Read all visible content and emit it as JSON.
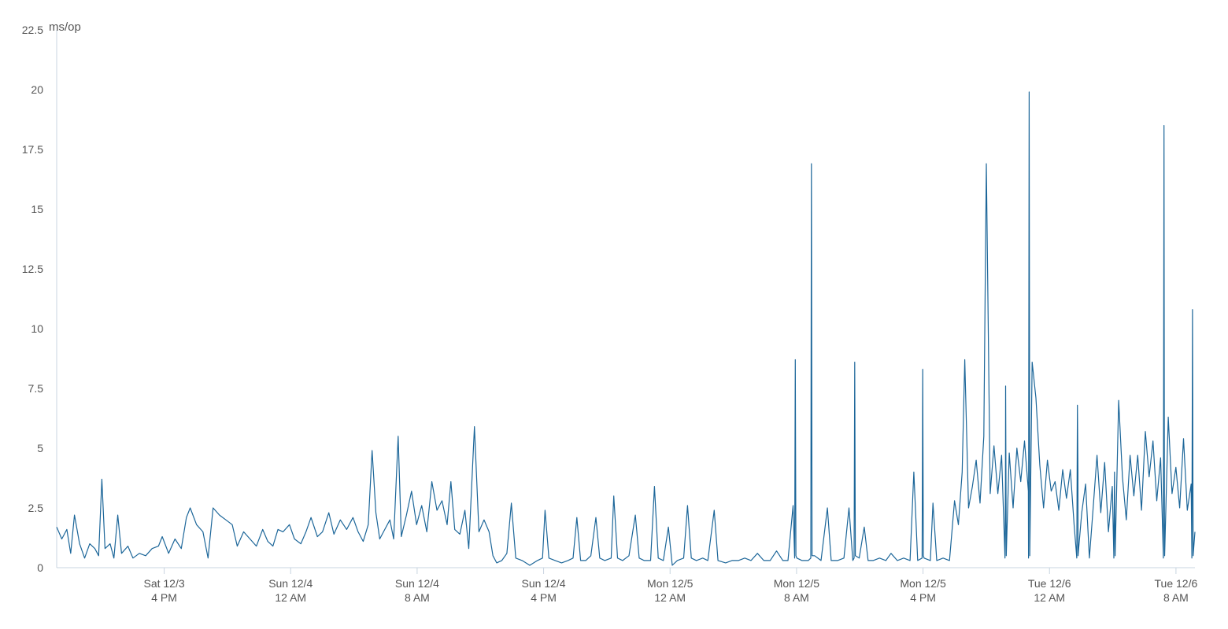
{
  "chart_data": {
    "type": "line",
    "title": "",
    "xlabel": "",
    "ylabel": "ms/op",
    "ylim": [
      0,
      22.5
    ],
    "yticks": [
      0,
      2.5,
      5,
      7.5,
      10,
      12.5,
      15,
      17.5,
      20,
      22.5
    ],
    "ytick_labels": [
      "0",
      "2.5",
      "5",
      "7.5",
      "10",
      "12.5",
      "15",
      "17.5",
      "20",
      "22.5"
    ],
    "xlim_hours": [
      0,
      90
    ],
    "x_start": "Sat 12/3 12:00 PM",
    "x_end": "Tue 12/6 10:00 AM",
    "xticks": [
      {
        "hour": 8.5,
        "line1": "Sat 12/3",
        "line2": "4 PM"
      },
      {
        "hour": 18.5,
        "line1": "Sun 12/4",
        "line2": "12 AM"
      },
      {
        "hour": 28.5,
        "line1": "Sun 12/4",
        "line2": "8 AM"
      },
      {
        "hour": 38.5,
        "line1": "Sun 12/4",
        "line2": "4 PM"
      },
      {
        "hour": 48.5,
        "line1": "Mon 12/5",
        "line2": "12 AM"
      },
      {
        "hour": 58.5,
        "line1": "Mon 12/5",
        "line2": "8 AM"
      },
      {
        "hour": 68.5,
        "line1": "Mon 12/5",
        "line2": "4 PM"
      },
      {
        "hour": 78.5,
        "line1": "Tue 12/6",
        "line2": "12 AM"
      },
      {
        "hour": 88.5,
        "line1": "Tue 12/6",
        "line2": "8 AM"
      }
    ],
    "grid": false,
    "legend": "none",
    "series": [
      {
        "color": "#1c6699",
        "keypoints": [
          [
            0.0,
            1.7
          ],
          [
            0.4,
            1.2
          ],
          [
            0.8,
            1.6
          ],
          [
            1.1,
            0.6
          ],
          [
            1.4,
            2.2
          ],
          [
            1.8,
            1.0
          ],
          [
            2.2,
            0.4
          ],
          [
            2.6,
            1.0
          ],
          [
            3.0,
            0.8
          ],
          [
            3.3,
            0.5
          ],
          [
            3.55,
            3.7
          ],
          [
            3.8,
            0.8
          ],
          [
            4.2,
            1.0
          ],
          [
            4.5,
            0.4
          ],
          [
            4.8,
            2.2
          ],
          [
            5.1,
            0.6
          ],
          [
            5.6,
            0.9
          ],
          [
            6.0,
            0.4
          ],
          [
            6.5,
            0.6
          ],
          [
            7.0,
            0.5
          ],
          [
            7.5,
            0.8
          ],
          [
            8.0,
            0.9
          ],
          [
            8.3,
            1.3
          ],
          [
            8.8,
            0.6
          ],
          [
            9.3,
            1.2
          ],
          [
            9.8,
            0.8
          ],
          [
            10.2,
            2.1
          ],
          [
            10.5,
            2.5
          ],
          [
            11.0,
            1.8
          ],
          [
            11.5,
            1.5
          ],
          [
            11.9,
            0.4
          ],
          [
            12.3,
            2.5
          ],
          [
            12.8,
            2.2
          ],
          [
            13.3,
            2.0
          ],
          [
            13.8,
            1.8
          ],
          [
            14.2,
            0.9
          ],
          [
            14.7,
            1.5
          ],
          [
            15.2,
            1.2
          ],
          [
            15.7,
            0.9
          ],
          [
            16.2,
            1.6
          ],
          [
            16.6,
            1.1
          ],
          [
            17.0,
            0.9
          ],
          [
            17.4,
            1.6
          ],
          [
            17.8,
            1.5
          ],
          [
            18.3,
            1.8
          ],
          [
            18.7,
            1.2
          ],
          [
            19.2,
            1.0
          ],
          [
            19.6,
            1.5
          ],
          [
            20.0,
            2.1
          ],
          [
            20.5,
            1.3
          ],
          [
            20.9,
            1.5
          ],
          [
            21.4,
            2.3
          ],
          [
            21.8,
            1.4
          ],
          [
            22.3,
            2.0
          ],
          [
            22.8,
            1.6
          ],
          [
            23.3,
            2.1
          ],
          [
            23.7,
            1.5
          ],
          [
            24.1,
            1.1
          ],
          [
            24.5,
            1.8
          ],
          [
            24.8,
            4.9
          ],
          [
            25.1,
            2.3
          ],
          [
            25.4,
            1.2
          ],
          [
            25.8,
            1.6
          ],
          [
            26.2,
            2.0
          ],
          [
            26.5,
            1.2
          ],
          [
            26.85,
            5.5
          ],
          [
            27.1,
            1.3
          ],
          [
            27.5,
            2.2
          ],
          [
            27.9,
            3.2
          ],
          [
            28.3,
            1.8
          ],
          [
            28.7,
            2.6
          ],
          [
            29.1,
            1.5
          ],
          [
            29.5,
            3.6
          ],
          [
            29.9,
            2.4
          ],
          [
            30.3,
            2.8
          ],
          [
            30.7,
            1.8
          ],
          [
            31.0,
            3.6
          ],
          [
            31.3,
            1.6
          ],
          [
            31.7,
            1.4
          ],
          [
            32.1,
            2.4
          ],
          [
            32.4,
            0.8
          ],
          [
            32.85,
            5.9
          ],
          [
            33.2,
            1.5
          ],
          [
            33.6,
            2.0
          ],
          [
            34.0,
            1.5
          ],
          [
            34.3,
            0.5
          ],
          [
            34.6,
            0.2
          ],
          [
            35.0,
            0.3
          ],
          [
            35.4,
            0.6
          ],
          [
            35.75,
            2.7
          ],
          [
            36.1,
            0.4
          ],
          [
            36.6,
            0.3
          ],
          [
            37.2,
            0.1
          ],
          [
            37.8,
            0.3
          ],
          [
            38.2,
            0.4
          ],
          [
            38.4,
            2.4
          ],
          [
            38.7,
            0.4
          ],
          [
            39.2,
            0.3
          ],
          [
            39.7,
            0.2
          ],
          [
            40.2,
            0.3
          ],
          [
            40.6,
            0.4
          ],
          [
            40.9,
            2.1
          ],
          [
            41.2,
            0.3
          ],
          [
            41.6,
            0.3
          ],
          [
            42.0,
            0.5
          ],
          [
            42.4,
            2.1
          ],
          [
            42.7,
            0.4
          ],
          [
            43.1,
            0.3
          ],
          [
            43.6,
            0.4
          ],
          [
            43.8,
            3.0
          ],
          [
            44.1,
            0.4
          ],
          [
            44.5,
            0.3
          ],
          [
            45.0,
            0.5
          ],
          [
            45.5,
            2.2
          ],
          [
            45.8,
            0.4
          ],
          [
            46.2,
            0.3
          ],
          [
            46.7,
            0.3
          ],
          [
            47.0,
            3.4
          ],
          [
            47.3,
            0.4
          ],
          [
            47.7,
            0.3
          ],
          [
            48.1,
            1.7
          ],
          [
            48.4,
            0.1
          ],
          [
            48.8,
            0.3
          ],
          [
            49.3,
            0.4
          ],
          [
            49.6,
            2.6
          ],
          [
            49.9,
            0.4
          ],
          [
            50.3,
            0.3
          ],
          [
            50.8,
            0.4
          ],
          [
            51.2,
            0.3
          ],
          [
            51.7,
            2.4
          ],
          [
            52.0,
            0.3
          ],
          [
            52.6,
            0.2
          ],
          [
            53.1,
            0.3
          ],
          [
            53.6,
            0.3
          ],
          [
            54.1,
            0.4
          ],
          [
            54.6,
            0.3
          ],
          [
            55.1,
            0.6
          ],
          [
            55.6,
            0.3
          ],
          [
            56.1,
            0.3
          ],
          [
            56.6,
            0.7
          ],
          [
            57.1,
            0.3
          ],
          [
            57.5,
            0.3
          ],
          [
            57.9,
            2.6
          ],
          [
            58.2,
            0.4
          ],
          [
            58.6,
            0.3
          ],
          [
            59.1,
            0.3
          ],
          [
            59.6,
            0.5
          ],
          [
            60.1,
            0.3
          ],
          [
            60.6,
            2.5
          ],
          [
            60.9,
            0.3
          ],
          [
            61.4,
            0.3
          ],
          [
            61.9,
            0.4
          ],
          [
            62.3,
            2.5
          ],
          [
            62.6,
            0.3
          ],
          [
            63.1,
            0.4
          ],
          [
            63.5,
            1.7
          ],
          [
            63.8,
            0.3
          ],
          [
            64.2,
            0.3
          ],
          [
            64.7,
            0.4
          ],
          [
            65.2,
            0.3
          ],
          [
            65.6,
            0.6
          ],
          [
            66.1,
            0.3
          ],
          [
            66.6,
            0.4
          ],
          [
            67.1,
            0.3
          ],
          [
            67.4,
            4.0
          ],
          [
            67.7,
            0.3
          ],
          [
            68.2,
            0.4
          ],
          [
            68.7,
            0.3
          ],
          [
            68.9,
            2.7
          ],
          [
            69.2,
            0.3
          ],
          [
            69.7,
            0.4
          ],
          [
            70.2,
            0.3
          ],
          [
            70.6,
            2.8
          ],
          [
            70.9,
            1.8
          ],
          [
            71.2,
            4.0
          ],
          [
            71.4,
            8.7
          ],
          [
            71.7,
            2.5
          ],
          [
            72.0,
            3.4
          ],
          [
            72.3,
            4.5
          ],
          [
            72.6,
            2.7
          ],
          [
            72.9,
            5.5
          ],
          [
            73.1,
            16.9
          ],
          [
            73.4,
            3.1
          ],
          [
            73.7,
            5.1
          ],
          [
            74.0,
            3.1
          ],
          [
            74.3,
            4.7
          ],
          [
            74.6,
            3.6
          ],
          [
            74.9,
            4.8
          ],
          [
            75.2,
            2.5
          ],
          [
            75.5,
            5.0
          ],
          [
            75.8,
            3.6
          ],
          [
            76.1,
            5.3
          ],
          [
            76.4,
            3.2
          ],
          [
            76.7,
            8.6
          ],
          [
            77.0,
            7.1
          ],
          [
            77.3,
            4.3
          ],
          [
            77.6,
            2.5
          ],
          [
            77.9,
            4.5
          ],
          [
            78.2,
            3.2
          ],
          [
            78.5,
            3.6
          ],
          [
            78.8,
            2.4
          ],
          [
            79.1,
            4.1
          ],
          [
            79.4,
            2.9
          ],
          [
            79.7,
            4.1
          ],
          [
            80.0,
            1.8
          ],
          [
            80.3,
            4.0
          ],
          [
            80.6,
            2.3
          ],
          [
            80.9,
            3.5
          ],
          [
            81.2,
            0.4
          ],
          [
            81.5,
            2.5
          ],
          [
            81.8,
            4.7
          ],
          [
            82.1,
            2.3
          ],
          [
            82.4,
            4.4
          ],
          [
            82.7,
            1.5
          ],
          [
            83.0,
            3.4
          ],
          [
            83.3,
            2.2
          ],
          [
            83.5,
            7.0
          ],
          [
            83.8,
            3.8
          ],
          [
            84.1,
            2.0
          ],
          [
            84.4,
            4.7
          ],
          [
            84.7,
            3.0
          ],
          [
            85.0,
            4.7
          ],
          [
            85.3,
            2.4
          ],
          [
            85.6,
            5.7
          ],
          [
            85.9,
            3.8
          ],
          [
            86.2,
            5.3
          ],
          [
            86.5,
            2.8
          ],
          [
            86.8,
            4.6
          ],
          [
            87.1,
            2.5
          ],
          [
            87.4,
            6.3
          ],
          [
            87.7,
            3.1
          ],
          [
            88.0,
            4.2
          ],
          [
            88.3,
            2.5
          ],
          [
            88.6,
            5.4
          ],
          [
            88.9,
            2.4
          ],
          [
            89.2,
            3.5
          ],
          [
            89.5,
            1.5
          ]
        ],
        "spikes": [
          {
            "hour": 59.7,
            "value": 8.7
          },
          {
            "hour": 61.0,
            "value": 16.9
          },
          {
            "hour": 64.5,
            "value": 8.6
          },
          {
            "hour": 70.0,
            "value": 8.3
          },
          {
            "hour": 76.7,
            "value": 7.6
          },
          {
            "hour": 78.6,
            "value": 19.9
          },
          {
            "hour": 82.5,
            "value": 6.8
          },
          {
            "hour": 85.5,
            "value": 4.0
          },
          {
            "hour": 89.5,
            "value": 18.5
          },
          {
            "hour": 91.8,
            "value": 10.8
          }
        ]
      }
    ]
  }
}
